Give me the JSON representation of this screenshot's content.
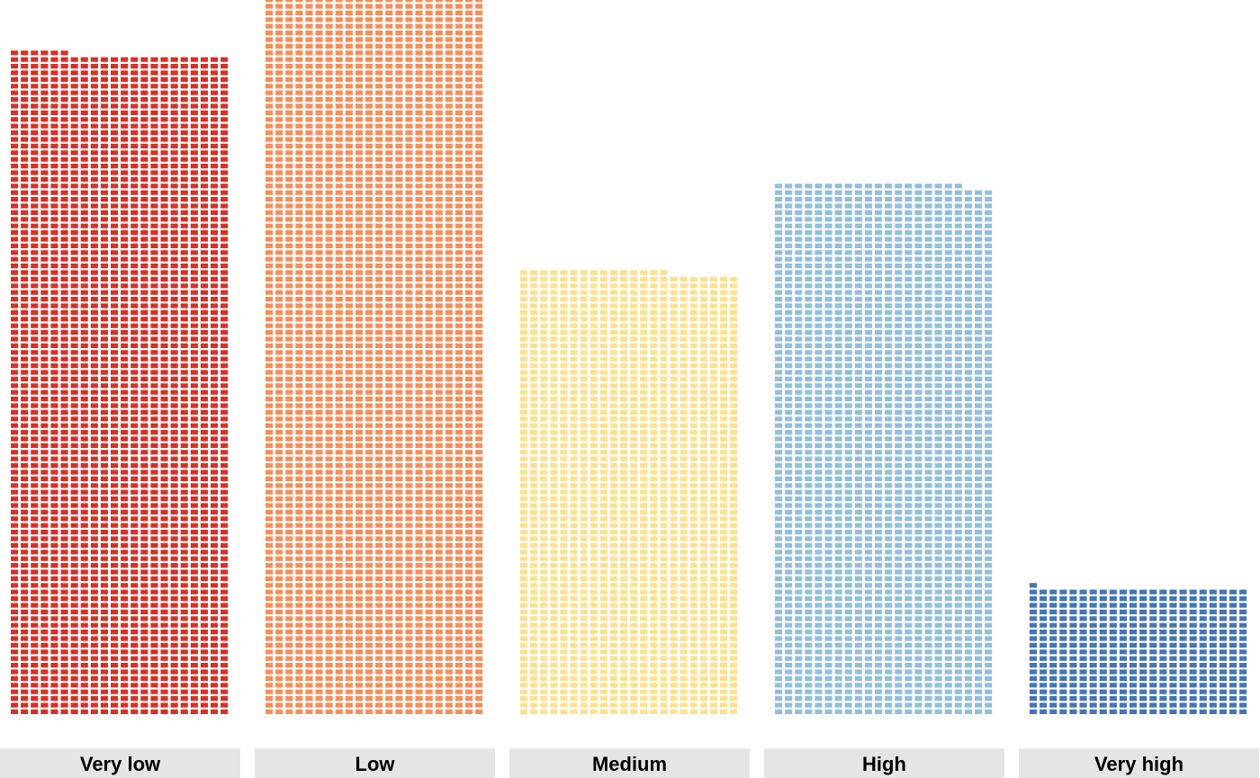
{
  "chart_data": {
    "type": "bar",
    "subtype": "waffle",
    "categories": [
      "Very low",
      "Low",
      "Medium",
      "High",
      "Very high"
    ],
    "values": [
      2184,
      2386,
      1467,
      1757,
      419
    ],
    "units_per_row": 22,
    "colors": [
      "#d73027",
      "#f88d59",
      "#fee090",
      "#91bfdb",
      "#4575b4"
    ],
    "title": "",
    "xlabel": "",
    "ylabel": "",
    "grid": false,
    "legend": "none"
  }
}
